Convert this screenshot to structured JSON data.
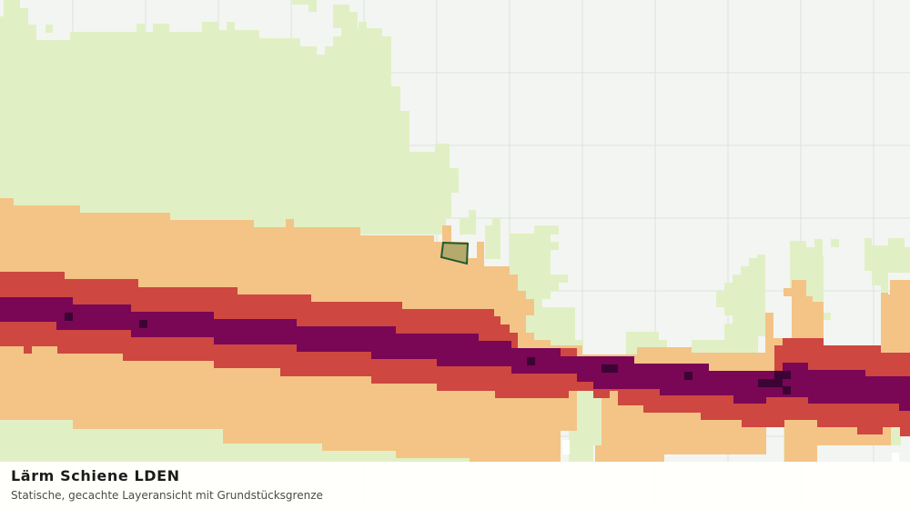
{
  "title": "Lärm Schiene LDEN",
  "subtitle": "Statische, gecachte Layeransicht mit Grundstücksgrenze",
  "colors": {
    "background": "#f3f5f2",
    "gridline": "#dde2dc",
    "light_green_zone": "#e1f0c4",
    "orange_zone": "#f3c486",
    "red_zone": "#ce4740",
    "purple_zone": "#7a0656",
    "dark_purple_cells": "#3b0434",
    "parcel_fill": "#a9a567",
    "parcel_border": "#1f5b31"
  }
}
